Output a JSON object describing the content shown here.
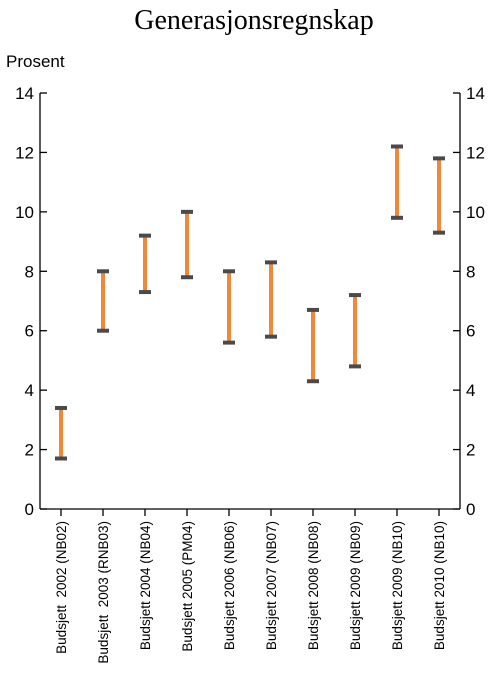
{
  "colors": {
    "bar": "#f0883a",
    "cap": "#4a4a4a"
  },
  "chart_data": {
    "type": "range",
    "title": "Generasjonsregnskap",
    "unit_label": "Prosent",
    "ylim": [
      0,
      14
    ],
    "yticks": [
      0,
      2,
      4,
      6,
      8,
      10,
      12,
      14
    ],
    "ytick_labels": [
      "0",
      "2",
      "4",
      "6",
      "8",
      "10",
      "12",
      "14"
    ],
    "secondary_y_axis": true,
    "grid": false,
    "categories": [
      "Budsjett  2002 (NB02)",
      "Budsjett  2003 (RNB03)",
      "Budsjett 2004 (NB04)",
      "Budsjett 2005 (PM04)",
      "Budsjett 2006 (NB06)",
      "Budsjett 2007 (NB07)",
      "Budsjett 2008 (NB08)",
      "Budsjett 2009 (NB09)",
      "Budsjett 2009 (NB10)",
      "Budsjett 2010 (NB10)"
    ],
    "low": [
      1.7,
      6.0,
      7.3,
      7.8,
      5.6,
      5.8,
      4.3,
      4.8,
      9.8,
      9.3
    ],
    "high": [
      3.4,
      8.0,
      9.2,
      10.0,
      8.0,
      8.3,
      6.7,
      7.2,
      12.2,
      11.8
    ]
  }
}
